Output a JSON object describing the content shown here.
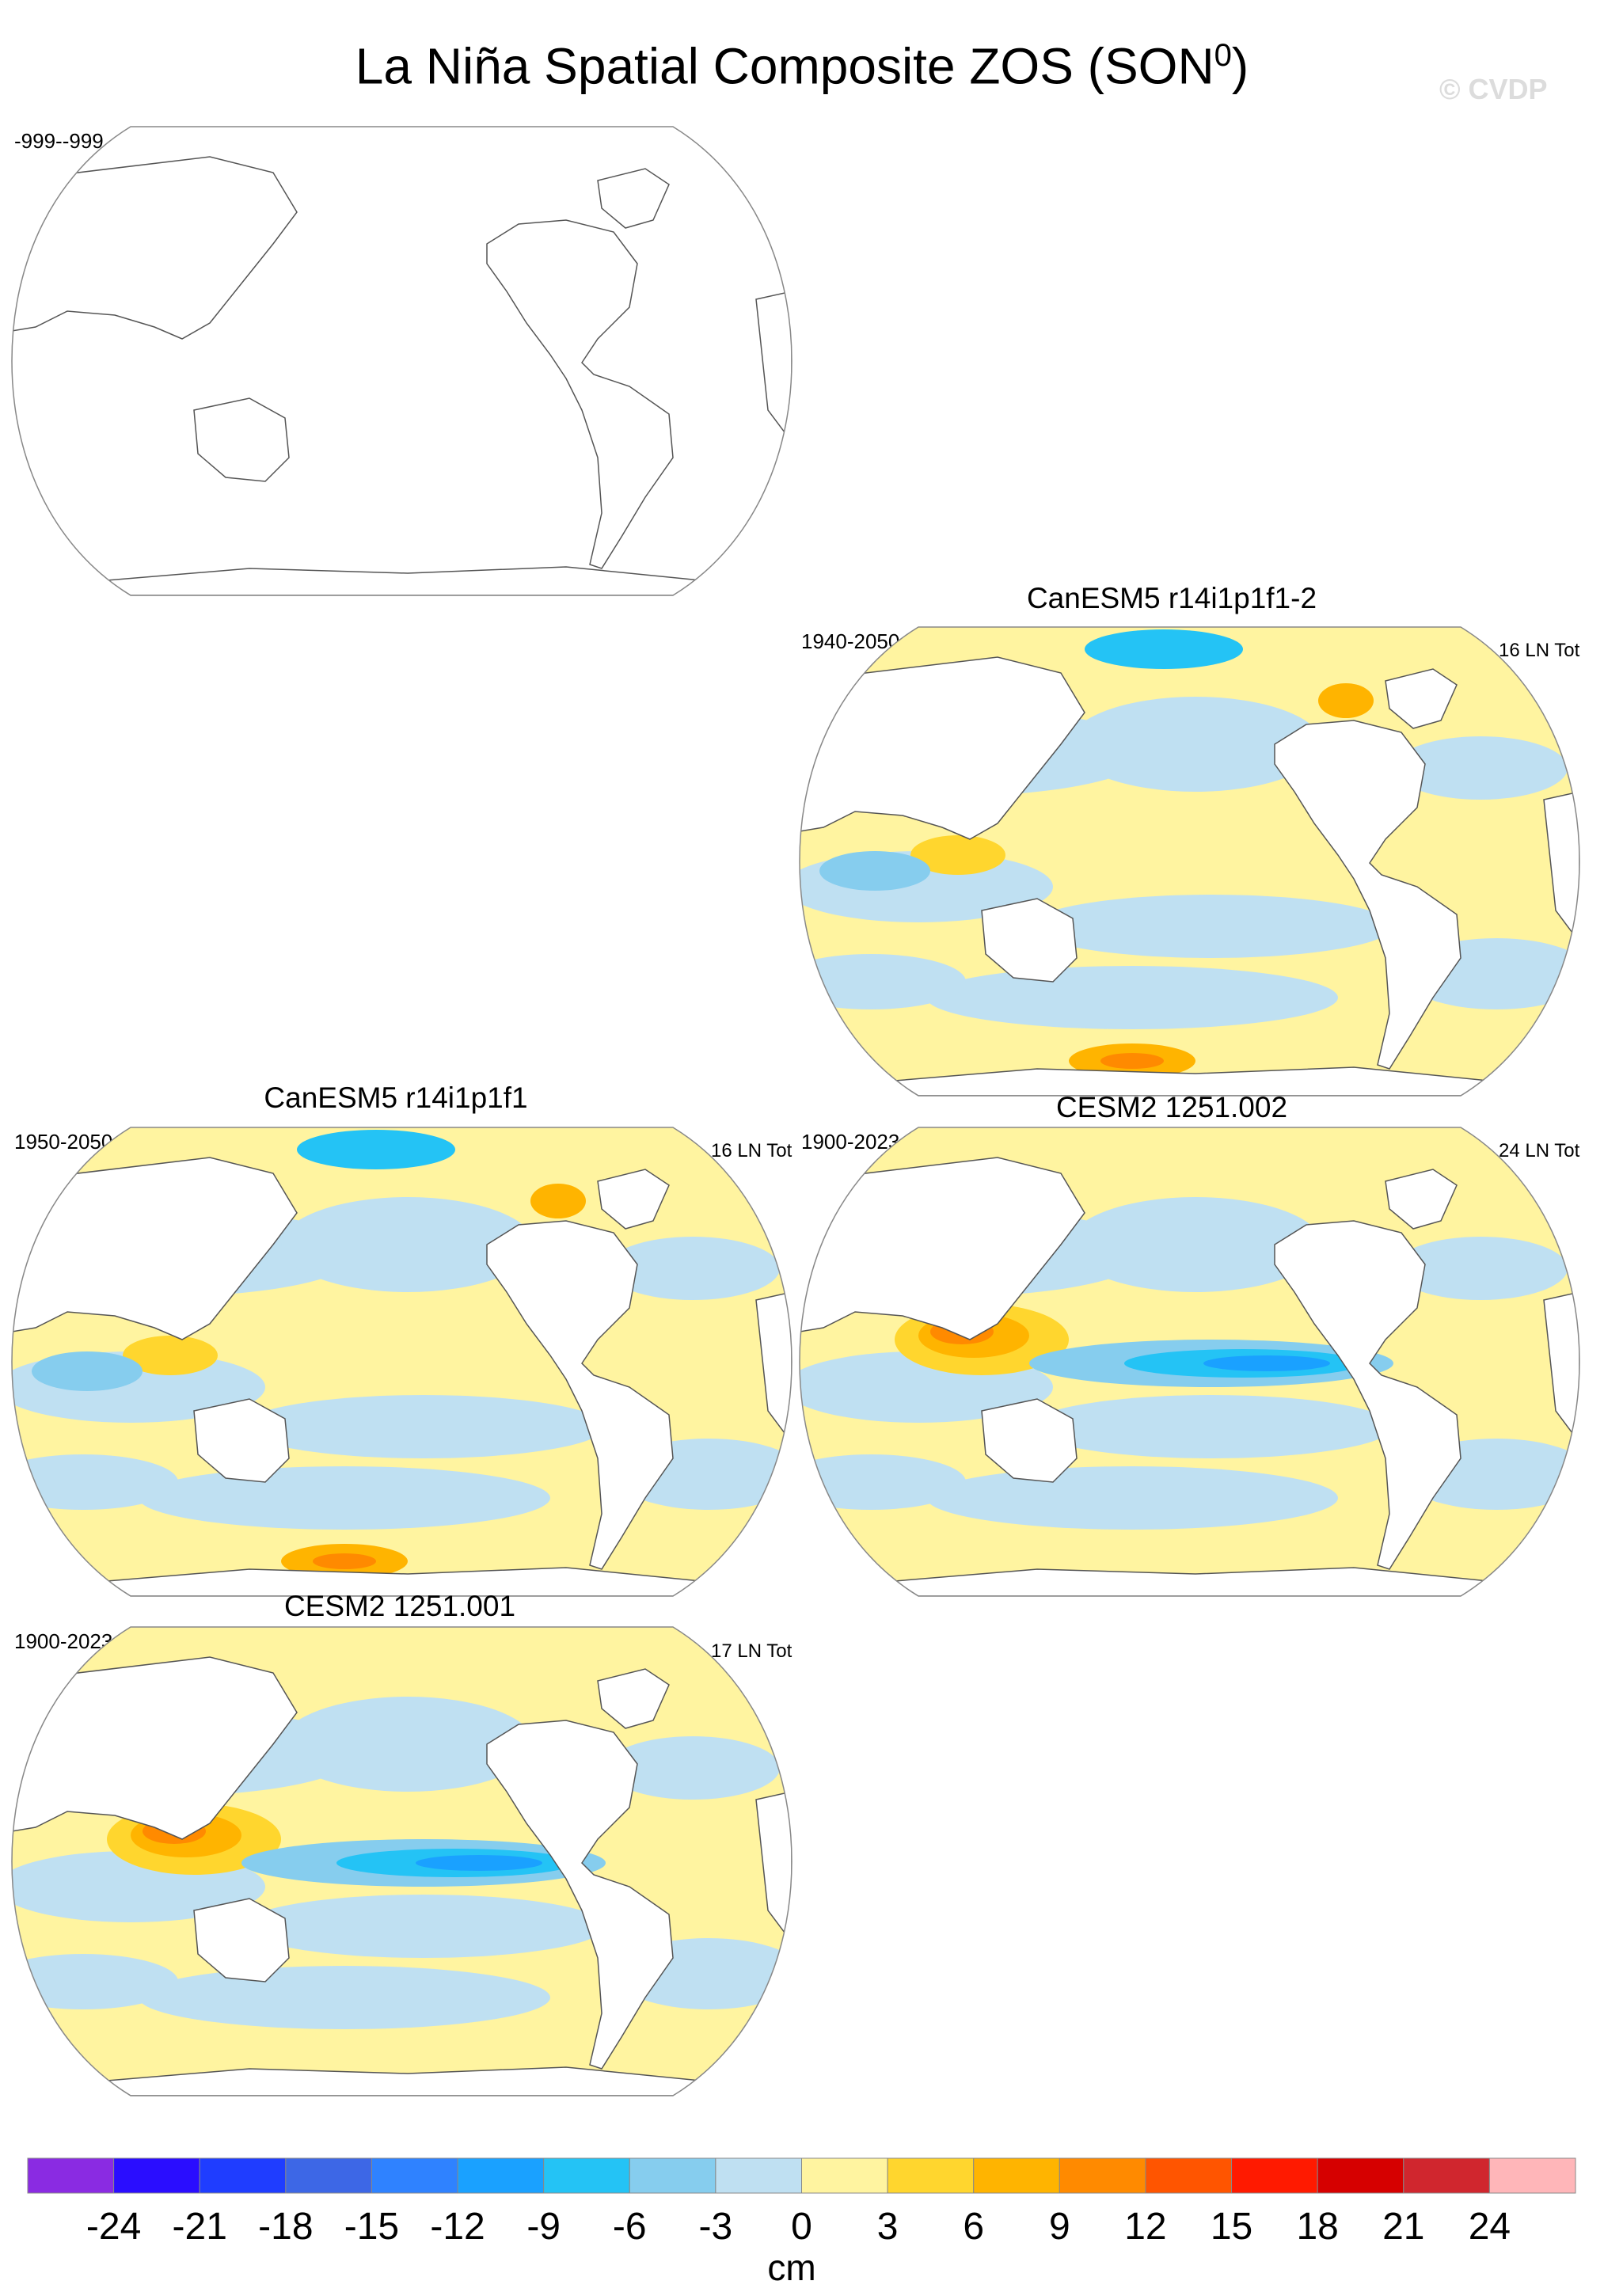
{
  "figure": {
    "title_main": "La Niña Spatial Composite ZOS (SON",
    "title_sup": "0",
    "title_end": ")",
    "watermark": "© CVDP"
  },
  "chart_data": [
    {
      "type": "heatmap",
      "projection": "robinson",
      "panel": "top-left",
      "title": "",
      "period": "-999--999",
      "count_label": "",
      "has_data": false,
      "patterns": []
    },
    {
      "type": "heatmap",
      "projection": "robinson",
      "panel": "upper-right",
      "title": "CanESM5 r14i1p1f1-2",
      "period": "1940-2050",
      "count_label": "16 LN Tot",
      "has_data": true,
      "patterns": [
        {
          "region": "Southern Ocean south of Australia",
          "value_cm": 6
        },
        {
          "region": "South Pacific near 50S 140W",
          "value_cm": 9
        },
        {
          "region": "Labrador Sea",
          "value_cm": 9
        },
        {
          "region": "Arctic (Siberian sector)",
          "value_cm": -9
        },
        {
          "region": "Maritime Continent",
          "value_cm": 6
        },
        {
          "region": "South Indian Ocean",
          "value_cm": -6
        }
      ]
    },
    {
      "type": "heatmap",
      "projection": "robinson",
      "panel": "middle-left",
      "title": "CanESM5 r14i1p1f1",
      "period": "1950-2050",
      "count_label": "16 LN Tot",
      "has_data": true,
      "patterns": [
        {
          "region": "South Pacific near 50S 150W",
          "value_cm": 9
        },
        {
          "region": "Maritime Continent",
          "value_cm": 6
        },
        {
          "region": "Labrador Sea",
          "value_cm": 6
        },
        {
          "region": "Arctic",
          "value_cm": -6
        }
      ]
    },
    {
      "type": "heatmap",
      "projection": "robinson",
      "panel": "middle-right",
      "title": "CESM2 1251.002",
      "period": "1900-2023",
      "count_label": "24 LN Tot",
      "has_data": true,
      "patterns": [
        {
          "region": "Western tropical Pacific",
          "value_cm": 12
        },
        {
          "region": "Eastern equatorial Pacific",
          "value_cm": -12
        },
        {
          "region": "Off-equatorial central Pacific",
          "value_cm": 3
        }
      ]
    },
    {
      "type": "heatmap",
      "projection": "robinson",
      "panel": "bottom-left",
      "title": "CESM2 1251.001",
      "period": "1900-2023",
      "count_label": "17 LN Tot",
      "has_data": true,
      "patterns": [
        {
          "region": "Western tropical Pacific",
          "value_cm": 12
        },
        {
          "region": "Eastern equatorial Pacific",
          "value_cm": -12
        },
        {
          "region": "North Australia",
          "value_cm": 9
        }
      ]
    }
  ],
  "colorbar": {
    "unit": "cm",
    "tick_labels": [
      "-24",
      "-21",
      "-18",
      "-15",
      "-12",
      "-9",
      "-6",
      "-3",
      "0",
      "3",
      "6",
      "9",
      "12",
      "15",
      "18",
      "21",
      "24"
    ],
    "colors": [
      "#8a2be2",
      "#2a0dff",
      "#1f3dff",
      "#3d67e6",
      "#2f82ff",
      "#1aa1ff",
      "#24c3f5",
      "#86cdee",
      "#bfe0f2",
      "#fff4a0",
      "#ffd62e",
      "#ffb400",
      "#ff8a00",
      "#ff5500",
      "#ff1a00",
      "#d60000",
      "#d0262e",
      "#ffb6b9"
    ]
  }
}
